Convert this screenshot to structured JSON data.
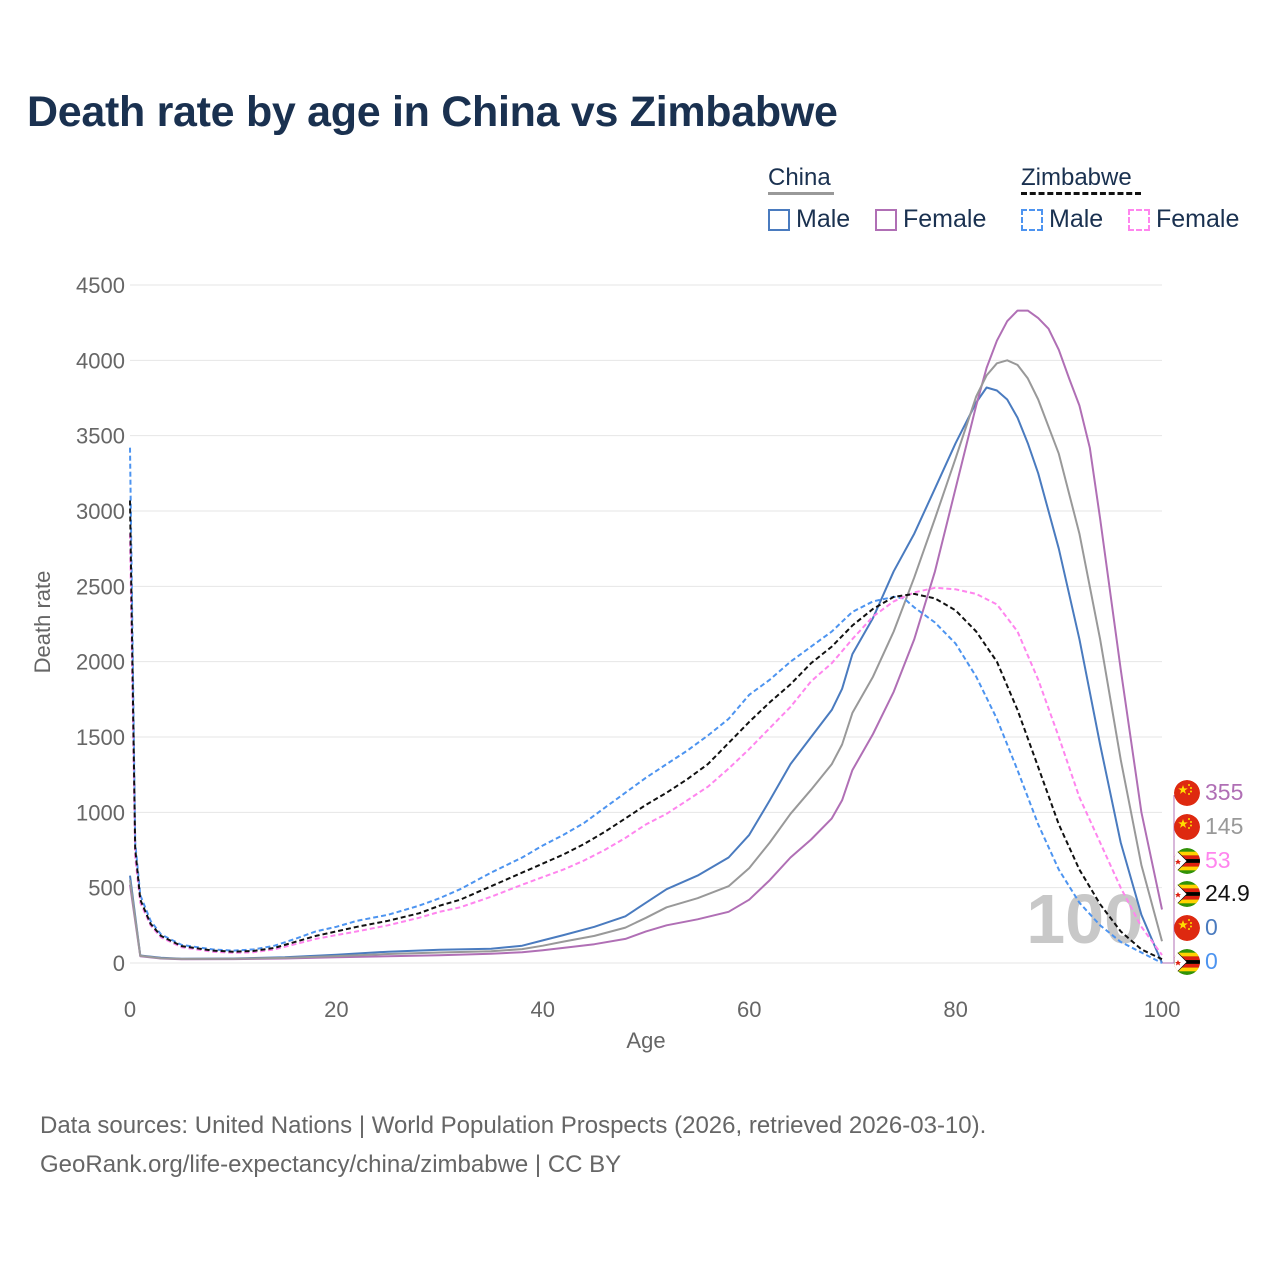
{
  "title": "Death rate by age in China vs Zimbabwe",
  "legend": {
    "groups": [
      {
        "name": "China",
        "line_color": "#999999",
        "line_style": "solid"
      },
      {
        "name": "Zimbabwe",
        "line_color": "#111111",
        "line_style": "dashed"
      }
    ],
    "items": [
      {
        "label": "Male",
        "color": "#4a7bbf",
        "style": "solid"
      },
      {
        "label": "Female",
        "color": "#b06fb5",
        "style": "solid"
      },
      {
        "label": "Male",
        "color": "#4d94f0",
        "style": "dashed"
      },
      {
        "label": "Female",
        "color": "#ff85ee",
        "style": "dashed"
      }
    ]
  },
  "watermark": "100",
  "end_labels": [
    {
      "value": "355",
      "color": "#b06fb5",
      "flag": "china"
    },
    {
      "value": "145",
      "color": "#999999",
      "flag": "china"
    },
    {
      "value": "53",
      "color": "#ff85ee",
      "flag": "zimbabwe"
    },
    {
      "value": "24.9",
      "color": "#111111",
      "flag": "zimbabwe"
    },
    {
      "value": "0",
      "color": "#4a7bbf",
      "flag": "china"
    },
    {
      "value": "0",
      "color": "#4d94f0",
      "flag": "zimbabwe"
    }
  ],
  "sources": {
    "line1": "Data sources: United Nations | World Population Prospects (2026, retrieved 2026-03-10).",
    "line2": "GeoRank.org/life-expectancy/china/zimbabwe | CC BY"
  },
  "chart_data": {
    "type": "line",
    "title": "Death rate by age in China vs Zimbabwe",
    "xlabel": "Age",
    "ylabel": "Death rate",
    "xlim": [
      0,
      100
    ],
    "ylim": [
      0,
      4500
    ],
    "xticks": [
      0,
      20,
      40,
      60,
      80,
      100
    ],
    "yticks": [
      0,
      500,
      1000,
      1500,
      2000,
      2500,
      3000,
      3500,
      4000,
      4500
    ],
    "grid": true,
    "series": [
      {
        "name": "China Male",
        "color": "#4a7bbf",
        "style": "solid",
        "points": [
          [
            0,
            580
          ],
          [
            1,
            50
          ],
          [
            3,
            35
          ],
          [
            5,
            28
          ],
          [
            10,
            30
          ],
          [
            15,
            38
          ],
          [
            20,
            55
          ],
          [
            25,
            75
          ],
          [
            30,
            88
          ],
          [
            35,
            95
          ],
          [
            38,
            115
          ],
          [
            40,
            150
          ],
          [
            42,
            185
          ],
          [
            45,
            240
          ],
          [
            48,
            310
          ],
          [
            50,
            400
          ],
          [
            52,
            490
          ],
          [
            55,
            580
          ],
          [
            58,
            700
          ],
          [
            60,
            850
          ],
          [
            62,
            1080
          ],
          [
            64,
            1320
          ],
          [
            66,
            1500
          ],
          [
            68,
            1680
          ],
          [
            69,
            1820
          ],
          [
            70,
            2050
          ],
          [
            72,
            2290
          ],
          [
            74,
            2600
          ],
          [
            76,
            2850
          ],
          [
            78,
            3150
          ],
          [
            80,
            3450
          ],
          [
            82,
            3720
          ],
          [
            83,
            3820
          ],
          [
            84,
            3800
          ],
          [
            85,
            3740
          ],
          [
            86,
            3620
          ],
          [
            87,
            3450
          ],
          [
            88,
            3250
          ],
          [
            90,
            2750
          ],
          [
            92,
            2150
          ],
          [
            94,
            1450
          ],
          [
            96,
            800
          ],
          [
            98,
            320
          ],
          [
            100,
            0
          ]
        ]
      },
      {
        "name": "China Female",
        "color": "#b06fb5",
        "style": "solid",
        "points": [
          [
            0,
            520
          ],
          [
            1,
            45
          ],
          [
            3,
            30
          ],
          [
            5,
            25
          ],
          [
            10,
            26
          ],
          [
            15,
            30
          ],
          [
            20,
            38
          ],
          [
            25,
            45
          ],
          [
            30,
            52
          ],
          [
            35,
            62
          ],
          [
            38,
            72
          ],
          [
            40,
            85
          ],
          [
            42,
            100
          ],
          [
            45,
            125
          ],
          [
            48,
            160
          ],
          [
            50,
            210
          ],
          [
            52,
            250
          ],
          [
            55,
            290
          ],
          [
            58,
            340
          ],
          [
            60,
            420
          ],
          [
            62,
            550
          ],
          [
            64,
            700
          ],
          [
            66,
            820
          ],
          [
            68,
            960
          ],
          [
            69,
            1080
          ],
          [
            70,
            1280
          ],
          [
            72,
            1520
          ],
          [
            74,
            1800
          ],
          [
            76,
            2150
          ],
          [
            78,
            2600
          ],
          [
            80,
            3150
          ],
          [
            82,
            3700
          ],
          [
            83,
            3950
          ],
          [
            84,
            4130
          ],
          [
            85,
            4260
          ],
          [
            86,
            4330
          ],
          [
            87,
            4330
          ],
          [
            88,
            4280
          ],
          [
            89,
            4210
          ],
          [
            90,
            4070
          ],
          [
            91,
            3880
          ],
          [
            92,
            3700
          ],
          [
            93,
            3420
          ],
          [
            94,
            2950
          ],
          [
            96,
            1950
          ],
          [
            98,
            1000
          ],
          [
            100,
            355
          ]
        ]
      },
      {
        "name": "China Total",
        "color": "#999999",
        "style": "solid",
        "points": [
          [
            0,
            550
          ],
          [
            1,
            48
          ],
          [
            3,
            32
          ],
          [
            5,
            27
          ],
          [
            10,
            28
          ],
          [
            15,
            34
          ],
          [
            20,
            46
          ],
          [
            25,
            60
          ],
          [
            30,
            70
          ],
          [
            35,
            78
          ],
          [
            38,
            92
          ],
          [
            40,
            115
          ],
          [
            42,
            142
          ],
          [
            45,
            180
          ],
          [
            48,
            235
          ],
          [
            50,
            300
          ],
          [
            52,
            370
          ],
          [
            55,
            430
          ],
          [
            58,
            510
          ],
          [
            60,
            630
          ],
          [
            62,
            800
          ],
          [
            64,
            990
          ],
          [
            66,
            1150
          ],
          [
            68,
            1320
          ],
          [
            69,
            1450
          ],
          [
            70,
            1660
          ],
          [
            72,
            1900
          ],
          [
            74,
            2200
          ],
          [
            76,
            2560
          ],
          [
            78,
            2950
          ],
          [
            80,
            3350
          ],
          [
            82,
            3760
          ],
          [
            83,
            3900
          ],
          [
            84,
            3980
          ],
          [
            85,
            4000
          ],
          [
            86,
            3970
          ],
          [
            87,
            3880
          ],
          [
            88,
            3740
          ],
          [
            90,
            3380
          ],
          [
            92,
            2850
          ],
          [
            94,
            2150
          ],
          [
            96,
            1350
          ],
          [
            98,
            650
          ],
          [
            100,
            145
          ]
        ]
      },
      {
        "name": "Zimbabwe Male",
        "color": "#4d94f0",
        "style": "dashed",
        "points": [
          [
            0,
            3420
          ],
          [
            0.5,
            800
          ],
          [
            1,
            450
          ],
          [
            2,
            280
          ],
          [
            3,
            190
          ],
          [
            5,
            120
          ],
          [
            8,
            90
          ],
          [
            10,
            82
          ],
          [
            12,
            90
          ],
          [
            14,
            115
          ],
          [
            16,
            160
          ],
          [
            18,
            210
          ],
          [
            20,
            240
          ],
          [
            22,
            280
          ],
          [
            25,
            320
          ],
          [
            28,
            380
          ],
          [
            30,
            430
          ],
          [
            32,
            490
          ],
          [
            35,
            600
          ],
          [
            38,
            700
          ],
          [
            40,
            780
          ],
          [
            42,
            850
          ],
          [
            44,
            930
          ],
          [
            46,
            1030
          ],
          [
            48,
            1130
          ],
          [
            50,
            1230
          ],
          [
            52,
            1320
          ],
          [
            54,
            1410
          ],
          [
            56,
            1510
          ],
          [
            58,
            1620
          ],
          [
            60,
            1780
          ],
          [
            62,
            1880
          ],
          [
            64,
            2000
          ],
          [
            66,
            2100
          ],
          [
            68,
            2200
          ],
          [
            70,
            2330
          ],
          [
            72,
            2400
          ],
          [
            74,
            2430
          ],
          [
            75,
            2420
          ],
          [
            76,
            2360
          ],
          [
            78,
            2260
          ],
          [
            80,
            2120
          ],
          [
            82,
            1900
          ],
          [
            84,
            1620
          ],
          [
            86,
            1280
          ],
          [
            88,
            920
          ],
          [
            90,
            620
          ],
          [
            92,
            400
          ],
          [
            94,
            250
          ],
          [
            96,
            140
          ],
          [
            98,
            70
          ],
          [
            100,
            0
          ]
        ]
      },
      {
        "name": "Zimbabwe Female",
        "color": "#ff85ee",
        "style": "dashed",
        "points": [
          [
            0,
            2850
          ],
          [
            0.5,
            700
          ],
          [
            1,
            400
          ],
          [
            2,
            250
          ],
          [
            3,
            170
          ],
          [
            5,
            105
          ],
          [
            8,
            75
          ],
          [
            10,
            68
          ],
          [
            12,
            72
          ],
          [
            14,
            90
          ],
          [
            16,
            125
          ],
          [
            18,
            160
          ],
          [
            20,
            185
          ],
          [
            22,
            210
          ],
          [
            25,
            250
          ],
          [
            28,
            300
          ],
          [
            30,
            340
          ],
          [
            32,
            370
          ],
          [
            35,
            440
          ],
          [
            38,
            520
          ],
          [
            40,
            570
          ],
          [
            42,
            620
          ],
          [
            44,
            680
          ],
          [
            46,
            750
          ],
          [
            48,
            830
          ],
          [
            50,
            920
          ],
          [
            52,
            990
          ],
          [
            54,
            1080
          ],
          [
            56,
            1170
          ],
          [
            58,
            1290
          ],
          [
            60,
            1420
          ],
          [
            62,
            1560
          ],
          [
            64,
            1700
          ],
          [
            66,
            1870
          ],
          [
            68,
            1990
          ],
          [
            70,
            2150
          ],
          [
            72,
            2300
          ],
          [
            74,
            2400
          ],
          [
            76,
            2460
          ],
          [
            78,
            2490
          ],
          [
            80,
            2480
          ],
          [
            82,
            2450
          ],
          [
            84,
            2380
          ],
          [
            86,
            2200
          ],
          [
            88,
            1880
          ],
          [
            90,
            1500
          ],
          [
            92,
            1100
          ],
          [
            94,
            800
          ],
          [
            96,
            500
          ],
          [
            98,
            240
          ],
          [
            100,
            53
          ]
        ]
      },
      {
        "name": "Zimbabwe Total",
        "color": "#111111",
        "style": "dashed",
        "points": [
          [
            0,
            3070
          ],
          [
            0.5,
            760
          ],
          [
            1,
            420
          ],
          [
            2,
            260
          ],
          [
            3,
            180
          ],
          [
            5,
            112
          ],
          [
            8,
            82
          ],
          [
            10,
            75
          ],
          [
            12,
            80
          ],
          [
            14,
            100
          ],
          [
            16,
            140
          ],
          [
            18,
            180
          ],
          [
            20,
            210
          ],
          [
            22,
            240
          ],
          [
            25,
            280
          ],
          [
            28,
            330
          ],
          [
            30,
            380
          ],
          [
            32,
            420
          ],
          [
            35,
            510
          ],
          [
            38,
            600
          ],
          [
            40,
            660
          ],
          [
            42,
            720
          ],
          [
            44,
            790
          ],
          [
            46,
            870
          ],
          [
            48,
            960
          ],
          [
            50,
            1050
          ],
          [
            52,
            1130
          ],
          [
            54,
            1220
          ],
          [
            56,
            1320
          ],
          [
            58,
            1460
          ],
          [
            60,
            1600
          ],
          [
            62,
            1730
          ],
          [
            64,
            1850
          ],
          [
            66,
            1990
          ],
          [
            68,
            2100
          ],
          [
            70,
            2240
          ],
          [
            72,
            2350
          ],
          [
            74,
            2430
          ],
          [
            76,
            2450
          ],
          [
            78,
            2420
          ],
          [
            80,
            2340
          ],
          [
            82,
            2200
          ],
          [
            84,
            2000
          ],
          [
            86,
            1680
          ],
          [
            88,
            1300
          ],
          [
            90,
            920
          ],
          [
            92,
            620
          ],
          [
            94,
            390
          ],
          [
            96,
            210
          ],
          [
            98,
            90
          ],
          [
            100,
            24.9
          ]
        ]
      }
    ]
  }
}
